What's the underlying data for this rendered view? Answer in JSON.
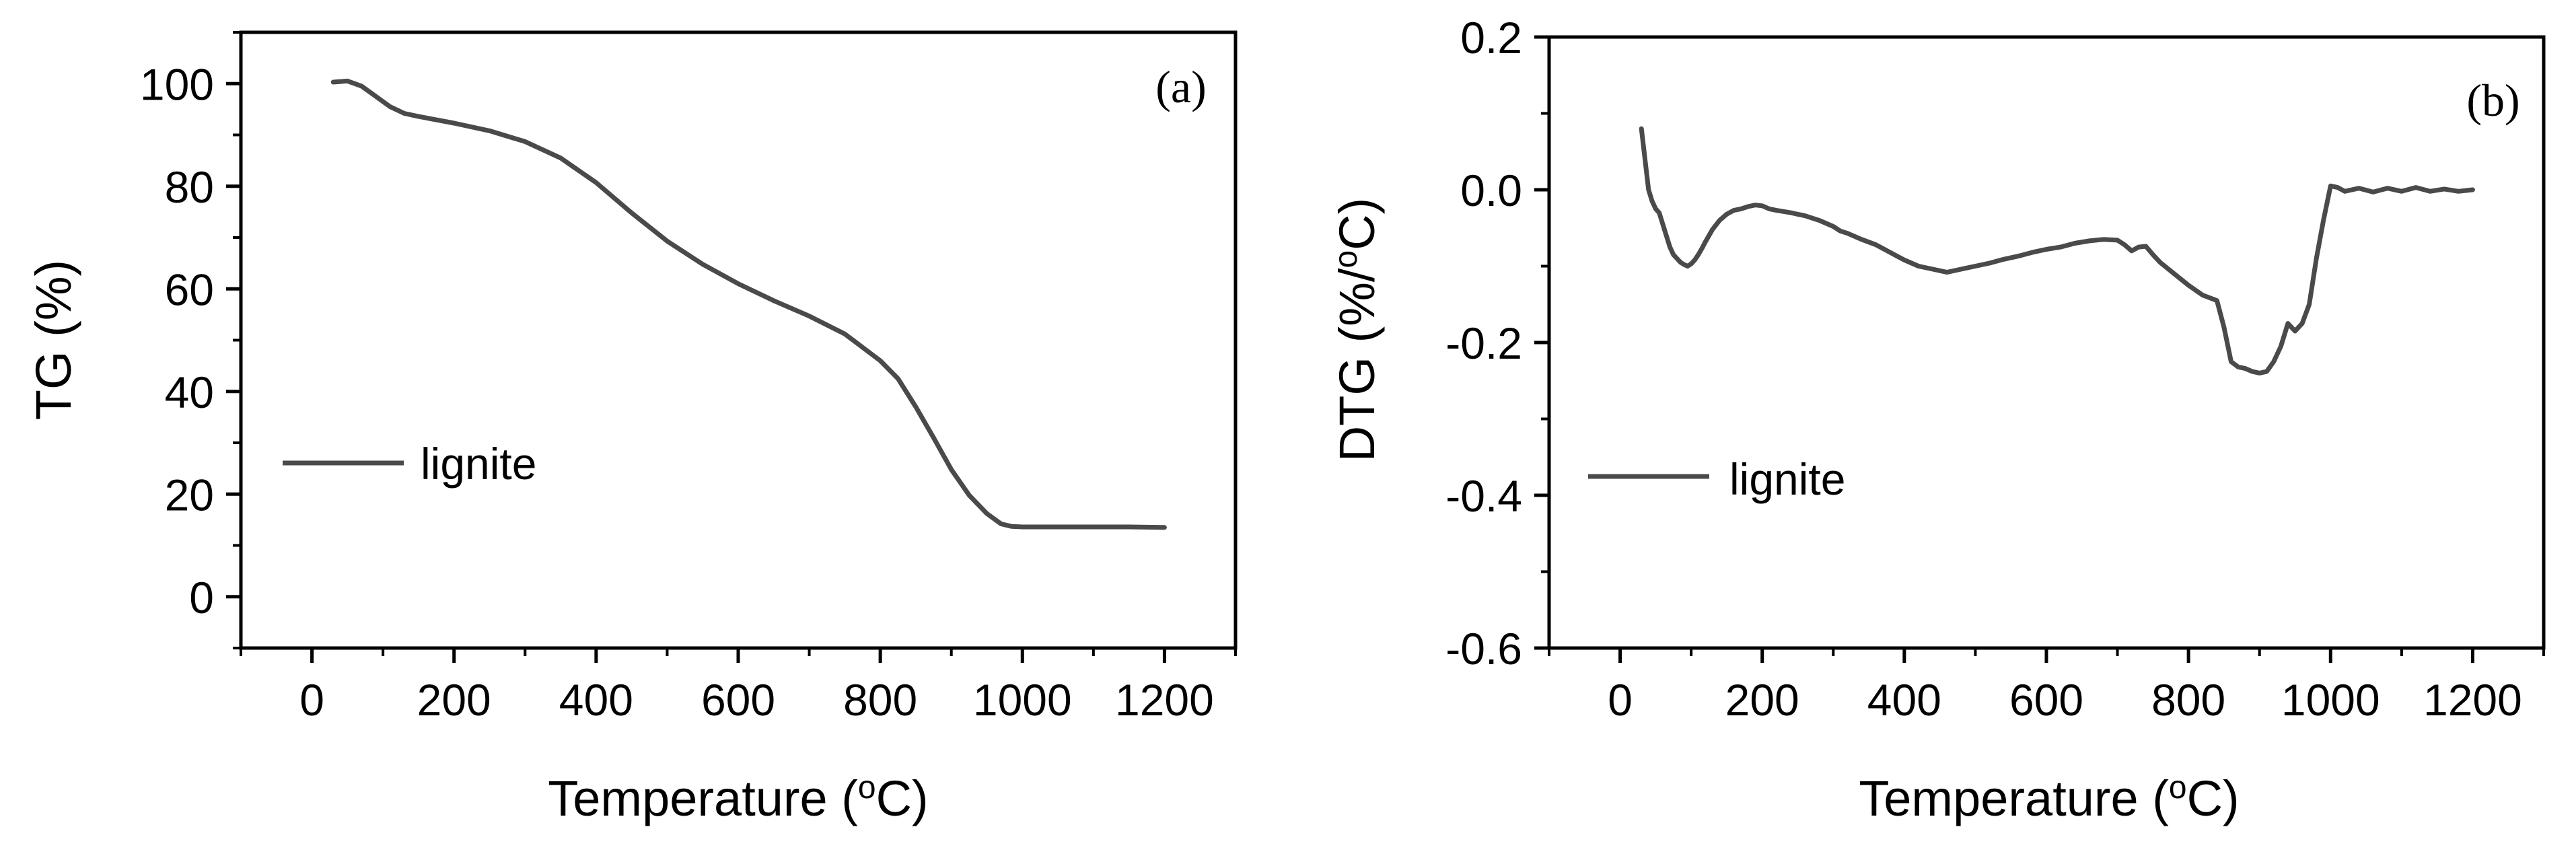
{
  "colors": {
    "line": "#4a4a4a",
    "axis": "#000000",
    "background": "#ffffff"
  },
  "chart_data": [
    {
      "type": "line",
      "panel_label": "(a)",
      "ylabel": "TG (%)",
      "xlabel_parts": [
        "Temperature (",
        "o",
        "C)"
      ],
      "xlim": [
        -100,
        1300
      ],
      "ylim": [
        -10,
        110
      ],
      "xticks": [
        0,
        200,
        400,
        600,
        800,
        1000,
        1200
      ],
      "xtick_labels": [
        "0",
        "200",
        "400",
        "600",
        "800",
        "1000",
        "1200"
      ],
      "yticks": [
        0,
        20,
        40,
        60,
        80,
        100
      ],
      "ytick_labels": [
        "0",
        "20",
        "40",
        "60",
        "80",
        "100"
      ],
      "legend": {
        "label": "lignite",
        "position": "middle-left"
      },
      "series": [
        {
          "name": "lignite",
          "x": [
            30,
            50,
            70,
            90,
            110,
            130,
            150,
            200,
            250,
            300,
            350,
            400,
            450,
            500,
            550,
            600,
            650,
            700,
            750,
            800,
            825,
            850,
            875,
            900,
            925,
            950,
            970,
            985,
            1000,
            1050,
            1100,
            1150,
            1200
          ],
          "y": [
            100.3,
            100.5,
            99.5,
            97.5,
            95.5,
            94.2,
            93.6,
            92.3,
            90.8,
            88.7,
            85.5,
            80.7,
            74.8,
            69.3,
            64.8,
            61.0,
            57.7,
            54.7,
            51.2,
            46.0,
            42.5,
            37.0,
            31.0,
            24.8,
            19.8,
            16.2,
            14.2,
            13.7,
            13.6,
            13.6,
            13.6,
            13.6,
            13.5
          ]
        }
      ]
    },
    {
      "type": "line",
      "panel_label": "(b)",
      "ylabel_parts": [
        "DTG (%/",
        "o",
        "C)"
      ],
      "xlabel_parts": [
        "Temperature (",
        "o",
        "C)"
      ],
      "xlim": [
        -100,
        1300
      ],
      "ylim": [
        -0.6,
        0.2
      ],
      "xticks": [
        0,
        200,
        400,
        600,
        800,
        1000,
        1200
      ],
      "xtick_labels": [
        "0",
        "200",
        "400",
        "600",
        "800",
        "1000",
        "1200"
      ],
      "yticks": [
        -0.6,
        -0.4,
        -0.2,
        0.0,
        0.2
      ],
      "ytick_labels": [
        "-0.6",
        "-0.4",
        "-0.2",
        "0.0",
        "0.2"
      ],
      "legend": {
        "label": "lignite",
        "position": "lower-left"
      },
      "series": [
        {
          "name": "lignite",
          "x": [
            30,
            35,
            40,
            45,
            50,
            55,
            60,
            65,
            70,
            75,
            80,
            85,
            90,
            95,
            100,
            105,
            110,
            115,
            120,
            130,
            140,
            150,
            160,
            170,
            180,
            190,
            200,
            210,
            220,
            240,
            260,
            280,
            300,
            310,
            320,
            340,
            360,
            380,
            400,
            420,
            440,
            460,
            480,
            500,
            520,
            540,
            560,
            580,
            600,
            620,
            640,
            660,
            680,
            700,
            710,
            720,
            730,
            740,
            750,
            760,
            780,
            800,
            820,
            840,
            850,
            860,
            870,
            880,
            890,
            900,
            910,
            920,
            930,
            940,
            950,
            960,
            970,
            980,
            990,
            1000,
            1010,
            1020,
            1040,
            1060,
            1080,
            1100,
            1120,
            1140,
            1160,
            1180,
            1200
          ],
          "y": [
            0.08,
            0.04,
            0.0,
            -0.015,
            -0.025,
            -0.03,
            -0.045,
            -0.06,
            -0.075,
            -0.085,
            -0.09,
            -0.095,
            -0.098,
            -0.1,
            -0.097,
            -0.092,
            -0.085,
            -0.077,
            -0.068,
            -0.052,
            -0.04,
            -0.032,
            -0.027,
            -0.025,
            -0.022,
            -0.02,
            -0.021,
            -0.025,
            -0.027,
            -0.03,
            -0.034,
            -0.04,
            -0.048,
            -0.054,
            -0.057,
            -0.065,
            -0.072,
            -0.082,
            -0.092,
            -0.1,
            -0.104,
            -0.108,
            -0.104,
            -0.1,
            -0.096,
            -0.091,
            -0.087,
            -0.082,
            -0.078,
            -0.075,
            -0.07,
            -0.067,
            -0.065,
            -0.066,
            -0.072,
            -0.08,
            -0.075,
            -0.074,
            -0.085,
            -0.095,
            -0.11,
            -0.125,
            -0.138,
            -0.145,
            -0.18,
            -0.225,
            -0.232,
            -0.234,
            -0.238,
            -0.24,
            -0.238,
            -0.225,
            -0.205,
            -0.175,
            -0.185,
            -0.175,
            -0.15,
            -0.09,
            -0.04,
            0.005,
            0.003,
            -0.002,
            0.002,
            -0.003,
            0.002,
            -0.002,
            0.003,
            -0.002,
            0.001,
            -0.002,
            0.0
          ]
        }
      ]
    }
  ]
}
